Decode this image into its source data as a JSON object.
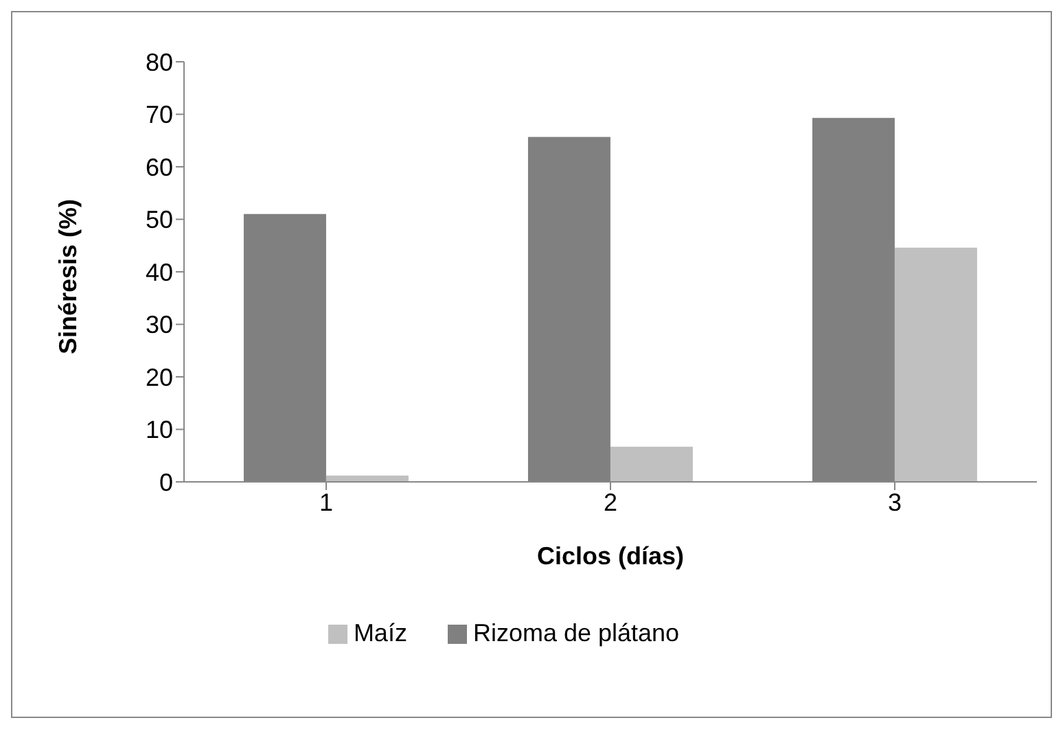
{
  "chart_data": {
    "type": "bar",
    "xlabel": "Ciclos (días)",
    "ylabel": "Sinéresis (%)",
    "categories": [
      "1",
      "2",
      "3"
    ],
    "series": [
      {
        "name": "Rizoma de plátano",
        "color": "#808080",
        "values": [
          51.0,
          65.7,
          69.3
        ]
      },
      {
        "name": "Maíz",
        "color": "#c0c0c0",
        "values": [
          1.2,
          6.7,
          44.6
        ]
      }
    ],
    "ylim": [
      0,
      80
    ],
    "yticks": [
      0,
      10,
      20,
      30,
      40,
      50,
      60,
      70,
      80
    ],
    "grid": false,
    "legend": "bottom"
  }
}
